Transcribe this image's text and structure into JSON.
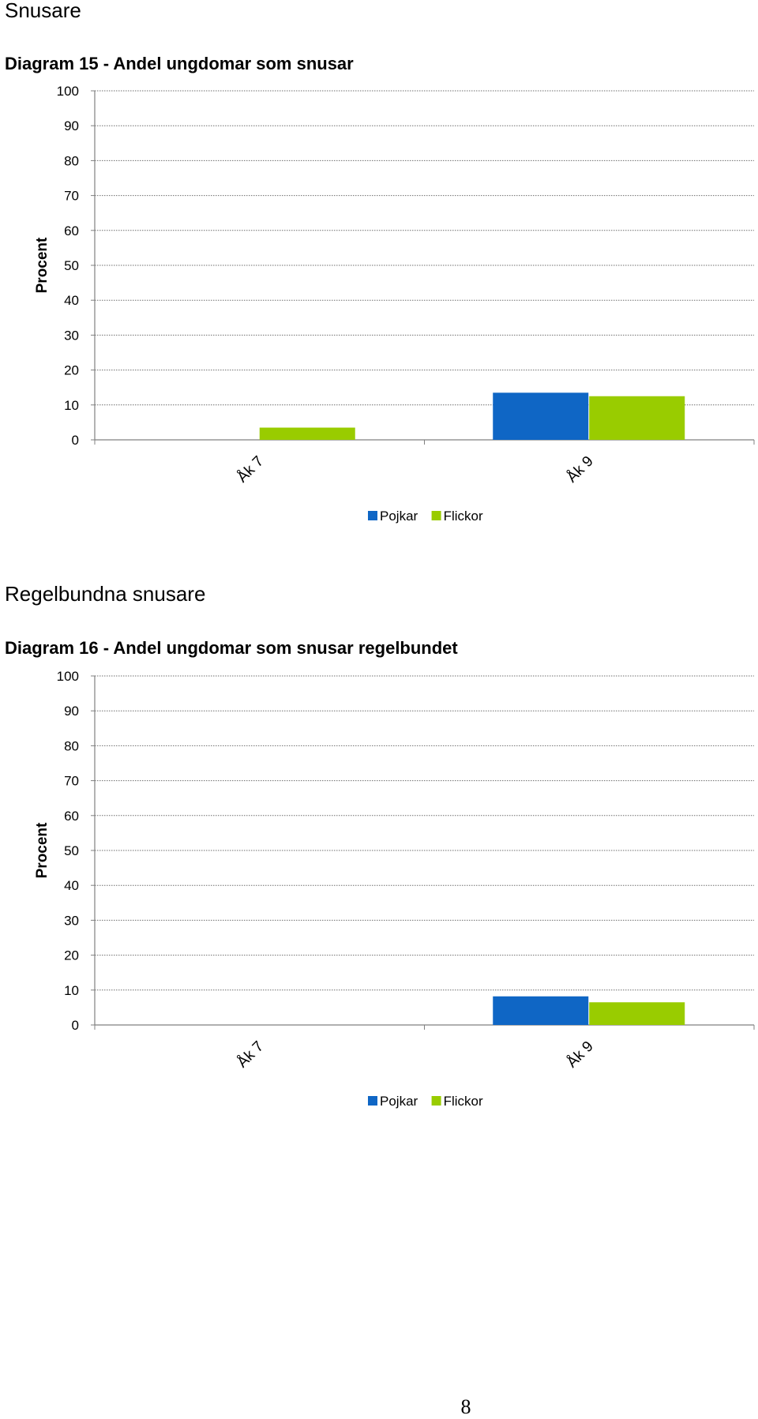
{
  "section1": {
    "heading": "Snusare",
    "diagram_title": "Diagram 15 - Andel ungdomar som snusar"
  },
  "section2": {
    "heading": "Regelbundna snusare",
    "diagram_title": "Diagram 16 - Andel ungdomar som snusar regelbundet"
  },
  "page_number": "8",
  "colors": {
    "pojkar": "#0F66C5",
    "flickor": "#99CC00"
  },
  "chart_data": [
    {
      "type": "bar",
      "title": "Diagram 15 - Andel ungdomar som snusar",
      "categories": [
        "Åk 7",
        "Åk 9"
      ],
      "series": [
        {
          "name": "Pojkar",
          "values": [
            0,
            13.5
          ]
        },
        {
          "name": "Flickor",
          "values": [
            3.5,
            12.5
          ]
        }
      ],
      "ylabel": "Procent",
      "ylim": [
        0,
        100
      ],
      "yticks": [
        "0",
        "10",
        "20",
        "30",
        "40",
        "50",
        "60",
        "70",
        "80",
        "90",
        "100"
      ],
      "grid": true,
      "legend": "bottom"
    },
    {
      "type": "bar",
      "title": "Diagram 16 - Andel ungdomar som snusar regelbundet",
      "categories": [
        "Åk 7",
        "Åk 9"
      ],
      "series": [
        {
          "name": "Pojkar",
          "values": [
            0,
            8.2
          ]
        },
        {
          "name": "Flickor",
          "values": [
            0,
            6.5
          ]
        }
      ],
      "ylabel": "Procent",
      "ylim": [
        0,
        100
      ],
      "yticks": [
        "0",
        "10",
        "20",
        "30",
        "40",
        "50",
        "60",
        "70",
        "80",
        "90",
        "100"
      ],
      "grid": true,
      "legend": "bottom"
    }
  ]
}
